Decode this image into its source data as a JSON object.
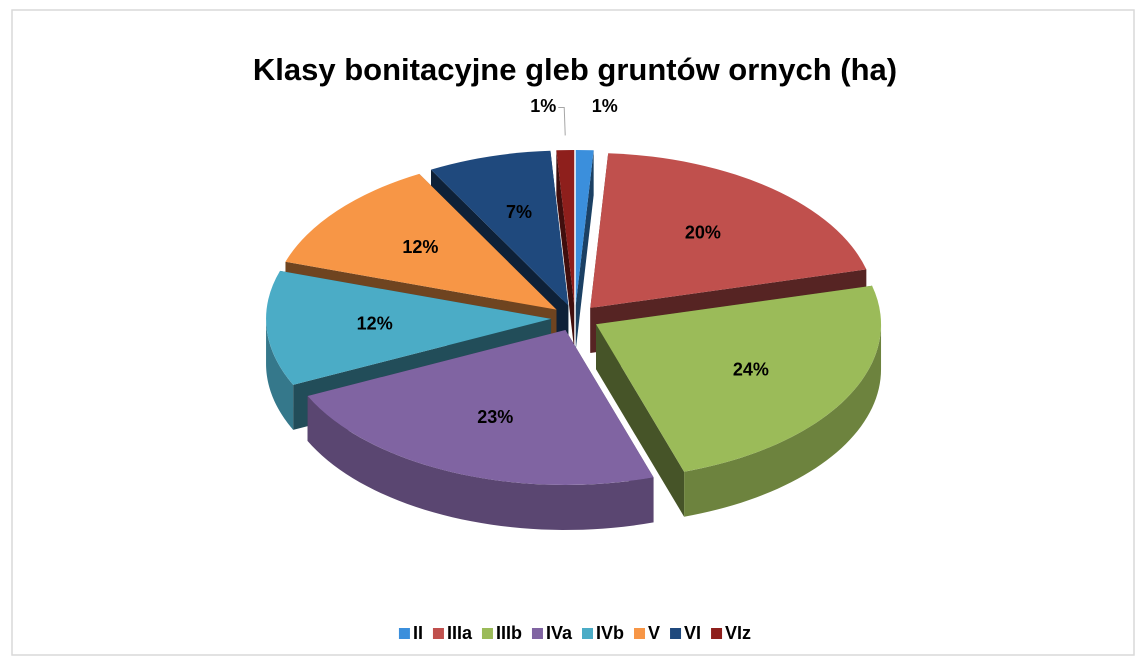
{
  "chart_data": {
    "type": "pie3d",
    "title": "Klasy bonitacyjne gleb gruntów ornych (ha)",
    "categories": [
      "II",
      "IIIa",
      "IIIb",
      "IVa",
      "IVb",
      "V",
      "VI",
      "VIz"
    ],
    "values": [
      1,
      20,
      24,
      23,
      12,
      12,
      7,
      1
    ],
    "value_labels": [
      "1%",
      "20%",
      "24%",
      "23%",
      "12%",
      "12%",
      "7%",
      "1%"
    ],
    "colors": [
      "#3b8fdc",
      "#c0504d",
      "#9bbb59",
      "#8064a2",
      "#4bacc6",
      "#f79646",
      "#1f497d",
      "#8e1f1c"
    ],
    "legend": "bottom"
  }
}
